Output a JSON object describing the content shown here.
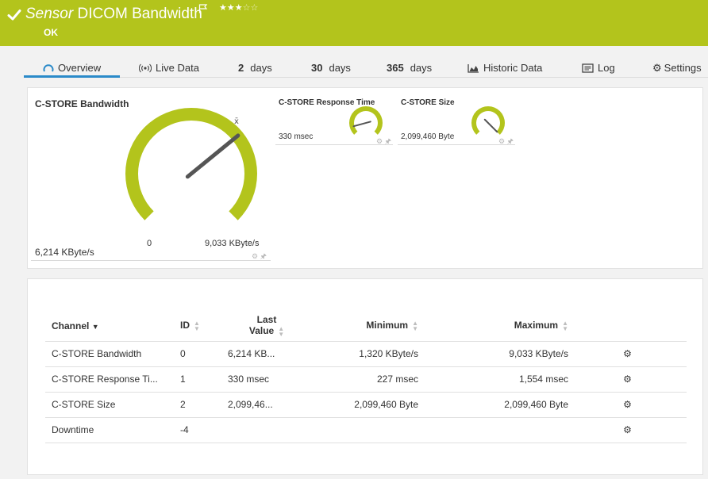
{
  "header": {
    "sensor_kind": "Sensor",
    "sensor_name": "DICOM Bandwidth",
    "status": "OK",
    "priority_stars": 3,
    "priority_max": 5,
    "accent_color": "#b3c41c"
  },
  "tabs": [
    {
      "label": "Overview",
      "icon": "gauge-icon",
      "active": true
    },
    {
      "label": "Live Data",
      "icon": "broadcast-icon"
    },
    {
      "num": "2",
      "label": "days"
    },
    {
      "num": "30",
      "label": "days"
    },
    {
      "num": "365",
      "label": "days"
    },
    {
      "label": "Historic Data",
      "icon": "area-chart-icon"
    },
    {
      "label": "Log",
      "icon": "log-icon"
    },
    {
      "label": "Settings",
      "icon": "gear-icon"
    }
  ],
  "gauges": {
    "bandwidth": {
      "title": "C-STORE Bandwidth",
      "value": "6,214 KByte/s",
      "min_label": "0",
      "max_label": "9,033 KByte/s",
      "avg_marker": "x̄",
      "level": 0.688
    },
    "response_time": {
      "title": "C-STORE Response Time",
      "value": "330 msec",
      "level": 0.11
    },
    "size": {
      "title": "C-STORE Size",
      "value": "2,099,460 Byte",
      "level": 1.0
    }
  },
  "table": {
    "headers": {
      "channel": "Channel",
      "id": "ID",
      "last_value_line1": "Last",
      "last_value_line2": "Value",
      "minimum": "Minimum",
      "maximum": "Maximum"
    },
    "rows": [
      {
        "channel": "C-STORE Bandwidth",
        "id": "0",
        "last": "6,214 KB...",
        "min": "1,320 KByte/s",
        "max": "9,033 KByte/s"
      },
      {
        "channel": "C-STORE Response Ti...",
        "id": "1",
        "last": "330 msec",
        "min": "227 msec",
        "max": "1,554 msec"
      },
      {
        "channel": "C-STORE Size",
        "id": "2",
        "last": "2,099,46...",
        "min": "2,099,460 Byte",
        "max": "2,099,460 Byte"
      },
      {
        "channel": "Downtime",
        "id": "-4",
        "last": "",
        "min": "",
        "max": ""
      }
    ]
  }
}
